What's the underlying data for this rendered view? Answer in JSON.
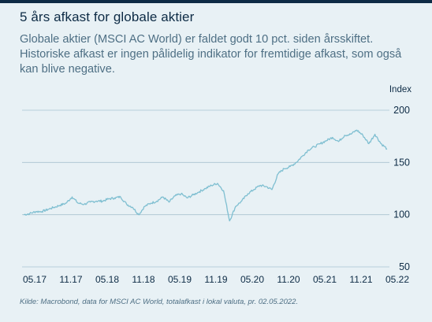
{
  "title": "5 års afkast for globale aktier",
  "subtitle": "Globale aktier (MSCI AC World) er faldet godt 10 pct. siden årsskiftet. Historiske afkast er ingen pålidelig indikator for fremtidige afkast, som også kan blive negative.",
  "source": "Kilde: Macrobond, data for MSCI AC World, totalafkast i lokal valuta, pr. 02.05.2022.",
  "colors": {
    "line": "#7fbfd1",
    "grid": "#a9c3d0",
    "text": "#0d2b45",
    "background": "#e8f1f5"
  },
  "chart_data": {
    "type": "line",
    "ylabel": "Index",
    "ylim": [
      50,
      200
    ],
    "yticks": [
      50,
      100,
      150,
      200
    ],
    "xtick_labels": [
      "05.17",
      "11.17",
      "05.18",
      "11.18",
      "05.19",
      "11.19",
      "05.20",
      "11.20",
      "05.21",
      "11.21",
      "05.22"
    ],
    "grid": "horizontal",
    "series": [
      {
        "x": [
          "2017-05",
          "2017-06",
          "2017-07",
          "2017-08",
          "2017-09",
          "2017-10",
          "2017-11",
          "2017-12",
          "2018-01",
          "2018-02",
          "2018-03",
          "2018-04",
          "2018-05",
          "2018-06",
          "2018-07",
          "2018-08",
          "2018-09",
          "2018-10",
          "2018-11",
          "2018-12",
          "2019-01",
          "2019-02",
          "2019-03",
          "2019-04",
          "2019-05",
          "2019-06",
          "2019-07",
          "2019-08",
          "2019-09",
          "2019-10",
          "2019-11",
          "2019-12",
          "2020-01",
          "2020-02",
          "2020-03",
          "2020-04",
          "2020-05",
          "2020-06",
          "2020-07",
          "2020-08",
          "2020-09",
          "2020-10",
          "2020-11",
          "2020-12",
          "2021-01",
          "2021-02",
          "2021-03",
          "2021-04",
          "2021-05",
          "2021-06",
          "2021-07",
          "2021-08",
          "2021-09",
          "2021-10",
          "2021-11",
          "2021-12",
          "2022-01",
          "2022-02",
          "2022-03",
          "2022-04",
          "2022-05"
        ],
        "values": [
          100,
          101,
          103,
          103,
          105,
          107,
          109,
          111,
          117,
          111,
          110,
          112,
          113,
          113,
          115,
          116,
          117,
          110,
          107,
          100,
          108,
          111,
          113,
          117,
          112,
          118,
          120,
          116,
          119,
          122,
          125,
          128,
          130,
          123,
          94,
          108,
          113,
          120,
          124,
          128,
          127,
          124,
          139,
          144,
          146,
          150,
          156,
          162,
          165,
          168,
          171,
          174,
          170,
          176,
          177,
          181,
          176,
          168,
          177,
          168,
          163
        ]
      }
    ]
  }
}
